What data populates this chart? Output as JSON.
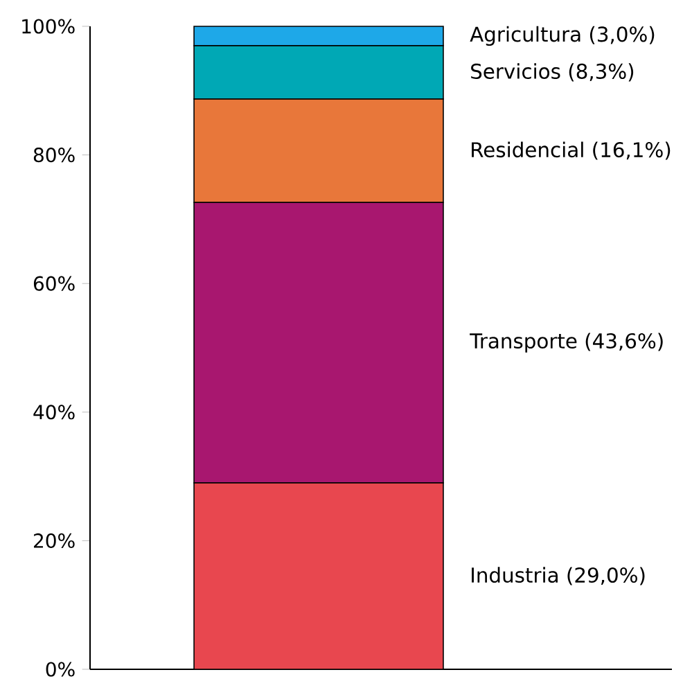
{
  "chart_data": {
    "type": "bar",
    "stacked": true,
    "categories": [
      null
    ],
    "series": [
      {
        "name": "Industria (29,0%)",
        "color": "#e8474f",
        "values": [
          29.0
        ]
      },
      {
        "name": "Transporte (43,6%)",
        "color": "#a8176f",
        "values": [
          43.6
        ]
      },
      {
        "name": "Residencial (16,1%)",
        "color": "#e8773a",
        "values": [
          16.1
        ]
      },
      {
        "name": "Servicios (8,3%)",
        "color": "#00a8b5",
        "values": [
          8.3
        ]
      },
      {
        "name": "Agricultura (3,0%)",
        "color": "#1ea8e8",
        "values": [
          3.0
        ]
      }
    ],
    "ylim": [
      0,
      100
    ],
    "yticks": [
      {
        "value": 0,
        "label": "0%"
      },
      {
        "value": 20,
        "label": "20%"
      },
      {
        "value": 40,
        "label": "40%"
      },
      {
        "value": 60,
        "label": "60%"
      },
      {
        "value": 80,
        "label": "80%"
      },
      {
        "value": 100,
        "label": "100%"
      }
    ]
  }
}
